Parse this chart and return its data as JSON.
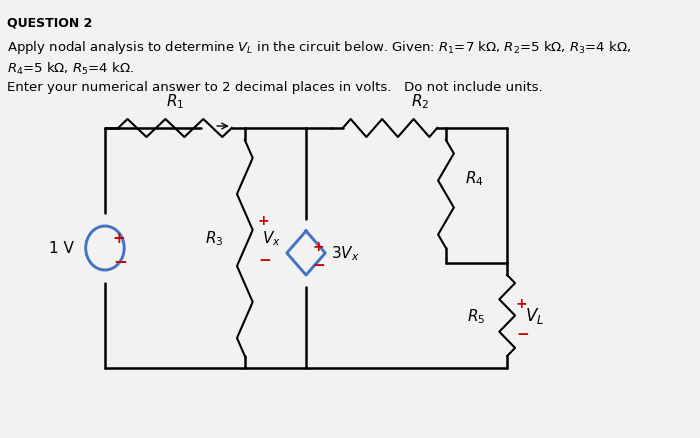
{
  "title_line1": "QUESTION 2",
  "text_line1": "Apply nodal analysis to determine V",
  "text_L": "L",
  "text_line1b": " in the circuit below. Given: R",
  "text_line1_rest": "=7 kΩ, R",
  "text_line2": "R₄=5 kΩ, R₅=4 kΩ.",
  "text_line3": "Enter your numerical answer to 2 decimal places in volts.   Do not include units.",
  "bg_color": "#f0f0f0",
  "wire_color": "#000000",
  "source_color": "#5b9bd5",
  "dep_source_color": "#5b9bd5",
  "resistor_color": "#000000",
  "plus_color": "#ff0000",
  "minus_color": "#ff0000",
  "text_color": "#000000"
}
